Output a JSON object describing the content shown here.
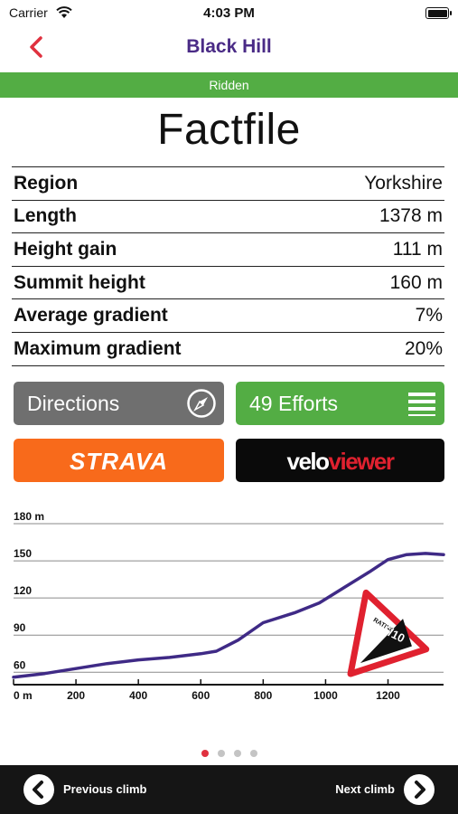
{
  "status_bar": {
    "carrier": "Carrier",
    "time": "4:03 PM"
  },
  "nav": {
    "title": "Black Hill"
  },
  "status_banner": {
    "text": "Ridden",
    "color": "#53ad44"
  },
  "factfile": {
    "title": "Factfile",
    "rows": [
      {
        "label": "Region",
        "value": "Yorkshire"
      },
      {
        "label": "Length",
        "value": "1378 m"
      },
      {
        "label": "Height gain",
        "value": "111 m"
      },
      {
        "label": "Summit height",
        "value": "160 m"
      },
      {
        "label": "Average gradient",
        "value": "7%"
      },
      {
        "label": "Maximum gradient",
        "value": "20%"
      }
    ]
  },
  "buttons": {
    "directions_label": "Directions",
    "efforts_label": "49 Efforts",
    "strava_label": "STRAVA",
    "veloviewer_part1": "velo",
    "veloviewer_part2": "viewer"
  },
  "colors": {
    "accent_purple": "#4a2b86",
    "back_red": "#e0313f",
    "strava_orange": "#f86a1b",
    "veloviewer_red": "#e0212f",
    "profile_line": "#3f2a86"
  },
  "chart_data": {
    "type": "line",
    "x": [
      0,
      100,
      200,
      300,
      400,
      500,
      600,
      650,
      720,
      800,
      900,
      980,
      1050,
      1140,
      1200,
      1260,
      1320,
      1378
    ],
    "y": [
      56,
      59,
      63,
      67,
      70,
      72,
      75,
      77,
      86,
      100,
      108,
      116,
      127,
      141,
      151,
      155,
      156,
      155
    ],
    "ylim": [
      50,
      180
    ],
    "yticks": [
      60,
      90,
      120,
      150,
      180
    ],
    "ytick_labels": [
      "60",
      "90",
      "120",
      "150",
      "180 m"
    ],
    "xlim": [
      0,
      1378
    ],
    "xticks": [
      0,
      200,
      400,
      600,
      800,
      1000,
      1200
    ],
    "xtick_labels": [
      "0 m",
      "200",
      "400",
      "600",
      "800",
      "1000",
      "1200"
    ],
    "grid": true,
    "rating": {
      "text": "RATING",
      "value": "5/10"
    }
  },
  "pagination": {
    "pages": 4,
    "active": 0
  },
  "footer": {
    "prev_label": "Previous climb",
    "next_label": "Next climb"
  }
}
